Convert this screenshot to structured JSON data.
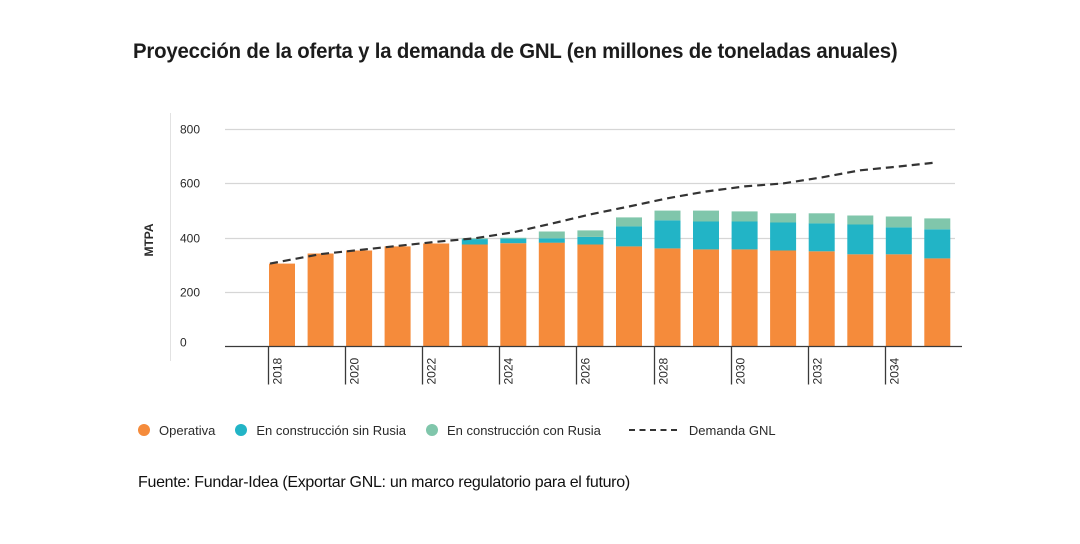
{
  "title": "Proyección de la oferta y la demanda de GNL (en millones de toneladas anuales)",
  "source": "Fuente: Fundar-Idea (Exportar GNL: un marco regulatorio para el futuro)",
  "colors": {
    "operativa": "#F58B3B",
    "sin_rusia": "#22B4C6",
    "con_rusia": "#80C6AB",
    "demanda": "#333333",
    "grid": "#d6d6d6",
    "axis": "#3a3a3a"
  },
  "legend": [
    {
      "label": "Operativa",
      "type": "dot",
      "series": "operativa"
    },
    {
      "label": "En construcción sin Rusia",
      "type": "dot",
      "series": "sin_rusia"
    },
    {
      "label": "En construcción con Rusia",
      "type": "dot",
      "series": "con_rusia"
    },
    {
      "label": "Demanda GNL",
      "type": "dash",
      "series": "demanda"
    }
  ],
  "chart_data": {
    "type": "bar",
    "stacked": true,
    "title": "Proyección de la oferta y la demanda de GNL (en millones de toneladas anuales)",
    "xlabel": "",
    "ylabel": "MTPA",
    "ylim": [
      0,
      800
    ],
    "yticks": [
      0,
      200,
      400,
      600,
      800
    ],
    "grid": true,
    "legend_position": "bottom",
    "categories": [
      "2018",
      "2019",
      "2020",
      "2021",
      "2022",
      "2023",
      "2024",
      "2025",
      "2026",
      "2027",
      "2028",
      "2029",
      "2030",
      "2031",
      "2032",
      "2033",
      "2034",
      "2035"
    ],
    "xtick_labels": [
      "2018",
      "2020",
      "2022",
      "2024",
      "2026",
      "2028",
      "2030",
      "2032",
      "2034"
    ],
    "series": [
      {
        "name": "Operativa",
        "key": "operativa",
        "values": [
          305,
          342,
          353,
          368,
          379,
          375,
          380,
          382,
          375,
          368,
          361,
          357,
          357,
          353,
          350,
          339,
          339,
          324
        ]
      },
      {
        "name": "En construcción sin Rusia",
        "key": "sin_rusia",
        "values": [
          0,
          0,
          0,
          0,
          0,
          20,
          17,
          16,
          28,
          74,
          103,
          103,
          103,
          103,
          103,
          110,
          99,
          107
        ]
      },
      {
        "name": "En construcción con Rusia",
        "key": "con_rusia",
        "values": [
          0,
          0,
          0,
          0,
          0,
          3,
          3,
          25,
          24,
          33,
          36,
          40,
          37,
          34,
          37,
          33,
          40,
          40
        ]
      }
    ],
    "line": {
      "name": "Demanda GNL",
      "style": "dashed",
      "values": [
        305,
        340,
        355,
        370,
        385,
        398,
        420,
        452,
        486,
        515,
        545,
        570,
        589,
        600,
        622,
        648,
        662,
        677
      ]
    }
  }
}
